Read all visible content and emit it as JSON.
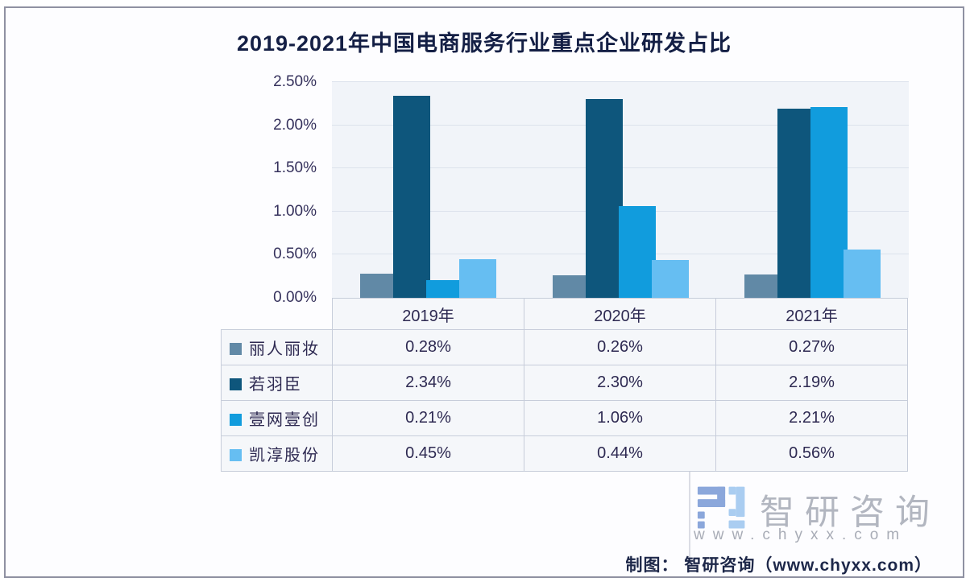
{
  "title": "2019-2021年中国电商服务行业重点企业研发占比",
  "chart_data": {
    "type": "bar",
    "categories": [
      "2019年",
      "2020年",
      "2021年"
    ],
    "series": [
      {
        "name": "丽人丽妆",
        "values": [
          0.28,
          0.26,
          0.27
        ],
        "color": "#6189A6"
      },
      {
        "name": "若羽臣",
        "values": [
          2.34,
          2.3,
          2.19
        ],
        "color": "#0E567C"
      },
      {
        "name": "壹网壹创",
        "values": [
          0.21,
          1.06,
          2.21
        ],
        "color": "#119CDD"
      },
      {
        "name": "凯淳股份",
        "values": [
          0.45,
          0.44,
          0.56
        ],
        "color": "#66BEF2"
      }
    ],
    "title": "2019-2021年中国电商服务行业重点企业研发占比",
    "xlabel": "",
    "ylabel": "",
    "ylim": [
      0,
      2.5
    ],
    "ytick_labels": [
      "0.00%",
      "0.50%",
      "1.00%",
      "1.50%",
      "2.00%",
      "2.50%"
    ],
    "grid": true,
    "legend_position": "table-left",
    "value_suffix": "%",
    "value_decimals": 2
  },
  "watermark": {
    "brand": "智研咨询",
    "url": "www.chyxx.com"
  },
  "credit": "制图： 智研咨询（www.chyxx.com）"
}
